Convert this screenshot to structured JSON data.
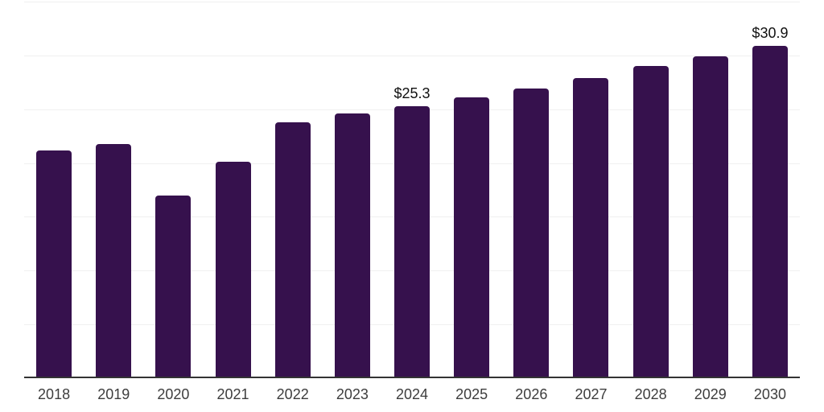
{
  "chart_data": {
    "type": "bar",
    "title": "",
    "xlabel": "",
    "ylabel": "",
    "categories": [
      "2018",
      "2019",
      "2020",
      "2021",
      "2022",
      "2023",
      "2024",
      "2025",
      "2026",
      "2027",
      "2028",
      "2029",
      "2030"
    ],
    "values": [
      21.2,
      21.8,
      17.0,
      20.1,
      23.8,
      24.6,
      25.3,
      26.1,
      26.9,
      27.9,
      29.0,
      29.9,
      30.9
    ],
    "bar_labels": [
      "",
      "",
      "",
      "",
      "",
      "",
      "$25.3",
      "",
      "",
      "",
      "",
      "",
      "$30.9"
    ],
    "value_prefix": "$",
    "ylim": [
      0,
      35
    ],
    "gridline_step": 5,
    "grid": true,
    "legend_position": "none",
    "colors": {
      "bar": "#36114d",
      "gridline": "#f0f0f0",
      "axis": "#333333",
      "tick_label": "#3d3d3d",
      "value_label": "#111111"
    }
  }
}
